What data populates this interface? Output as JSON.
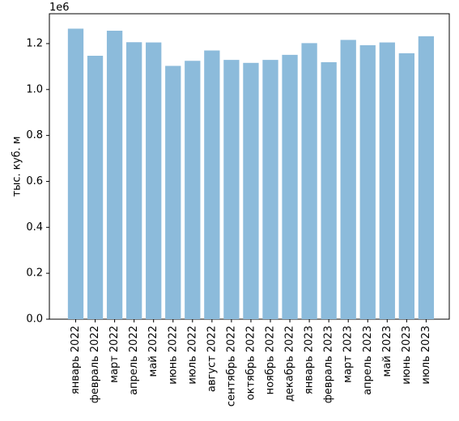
{
  "chart_data": {
    "type": "bar",
    "categories": [
      "январь 2022",
      "февраль 2022",
      "март 2022",
      "апрель 2022",
      "май 2022",
      "июнь 2022",
      "июль 2022",
      "август 2022",
      "сентябрь 2022",
      "октябрь 2022",
      "ноябрь 2022",
      "декабрь 2022",
      "январь 2023",
      "февраль 2023",
      "март 2023",
      "апрель 2023",
      "май 2023",
      "июнь 2023",
      "июль 2023"
    ],
    "values": [
      1265000,
      1147000,
      1256000,
      1206000,
      1205000,
      1103000,
      1125000,
      1170000,
      1129000,
      1116000,
      1129000,
      1151000,
      1202000,
      1119000,
      1216000,
      1193000,
      1205000,
      1158000,
      1232000
    ],
    "ylabel": "тыс. куб. м",
    "offset_label": "1e6",
    "ylim": [
      0,
      1330000
    ],
    "yticks": [
      0,
      200000,
      400000,
      600000,
      800000,
      1000000,
      1200000
    ],
    "ytick_labels": [
      "0.0",
      "0.2",
      "0.4",
      "0.6",
      "0.8",
      "1.0",
      "1.2"
    ],
    "bar_color": "#8cbbdb",
    "grid": false,
    "legend": "none"
  }
}
